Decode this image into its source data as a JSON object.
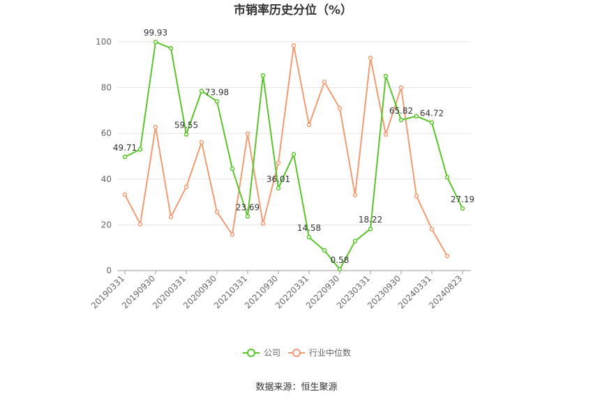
{
  "chart_data": {
    "type": "line",
    "title": "市销率历史分位（%）",
    "x": [
      "20190331",
      "20190630",
      "20190930",
      "20191231",
      "20200331",
      "20200630",
      "20200930",
      "20201231",
      "20210331",
      "20210630",
      "20210930",
      "20211231",
      "20220331",
      "20220630",
      "20220930",
      "20221231",
      "20230331",
      "20230630",
      "20230930",
      "20231231",
      "20240331",
      "20240630",
      "20240823"
    ],
    "x_tick_labels": [
      "20190331",
      "20190930",
      "20200331",
      "20200930",
      "20210331",
      "20210930",
      "20220331",
      "20220930",
      "20230331",
      "20230930",
      "20240331",
      "20240823"
    ],
    "ylim": [
      0,
      100
    ],
    "y_ticks": [
      0,
      20,
      40,
      60,
      80,
      100
    ],
    "grid": true,
    "legend_position": "bottom",
    "series": [
      {
        "name": "公司",
        "color": "#5ac42a",
        "values": [
          49.71,
          53.0,
          99.93,
          97.2,
          59.55,
          78.5,
          73.98,
          44.5,
          23.69,
          85.3,
          36.01,
          50.8,
          14.58,
          8.8,
          0.58,
          12.9,
          18.22,
          85.0,
          65.82,
          67.5,
          64.72,
          40.8,
          27.19
        ],
        "labels": {
          "0": "49.71",
          "2": "99.93",
          "4": "59.55",
          "6": "73.98",
          "8": "23.69",
          "10": "36.01",
          "12": "14.58",
          "14": "0.58",
          "16": "18.22",
          "18": "65.82",
          "20": "64.72",
          "22": "27.19"
        }
      },
      {
        "name": "行业中位数",
        "color": "#f29b72",
        "values": [
          33.2,
          20.3,
          62.7,
          23.4,
          36.6,
          56.1,
          25.6,
          15.7,
          59.8,
          20.6,
          47.1,
          98.4,
          63.7,
          82.5,
          71.0,
          33.0,
          93.0,
          59.5,
          80.0,
          32.6,
          18.1,
          6.4,
          null
        ]
      }
    ]
  },
  "footer": {
    "source": "数据来源：恒生聚源"
  }
}
